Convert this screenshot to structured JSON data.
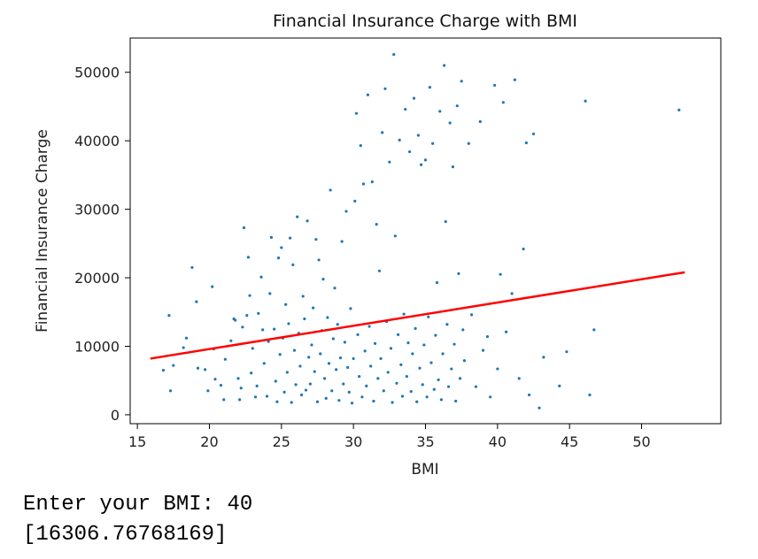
{
  "chart_data": {
    "type": "scatter",
    "title": "Financial Insurance Charge with BMI",
    "xlabel": "BMI",
    "ylabel": "Financial Insurance Charge",
    "xlim": [
      14.5,
      55.5
    ],
    "ylim": [
      -1300,
      55000
    ],
    "xticks": [
      15,
      20,
      25,
      30,
      35,
      40,
      45,
      50
    ],
    "yticks": [
      0,
      10000,
      20000,
      30000,
      40000,
      50000
    ],
    "grid": false,
    "point_color": "#1f77b4",
    "line_color": "#ff0000",
    "regression_line": {
      "x": [
        15.9,
        53
      ],
      "y": [
        8200,
        20800
      ]
    },
    "points": [
      [
        16.8,
        6500
      ],
      [
        17.2,
        14500
      ],
      [
        17.3,
        3500
      ],
      [
        17.5,
        7200
      ],
      [
        18.2,
        9800
      ],
      [
        18.4,
        11200
      ],
      [
        18.8,
        21500
      ],
      [
        19.1,
        16500
      ],
      [
        19.2,
        6800
      ],
      [
        19.7,
        6600
      ],
      [
        19.9,
        3500
      ],
      [
        20.2,
        18700
      ],
      [
        20.3,
        9600
      ],
      [
        20.4,
        5200
      ],
      [
        20.8,
        4300
      ],
      [
        21.0,
        2200
      ],
      [
        21.1,
        8100
      ],
      [
        21.5,
        10800
      ],
      [
        21.7,
        14000
      ],
      [
        21.8,
        13800
      ],
      [
        22.0,
        5300
      ],
      [
        22.1,
        2200
      ],
      [
        22.2,
        3900
      ],
      [
        22.3,
        12800
      ],
      [
        22.4,
        27300
      ],
      [
        22.6,
        14500
      ],
      [
        22.7,
        23000
      ],
      [
        22.8,
        17400
      ],
      [
        22.9,
        6100
      ],
      [
        23.0,
        9700
      ],
      [
        23.2,
        2600
      ],
      [
        23.3,
        4200
      ],
      [
        23.4,
        14800
      ],
      [
        23.6,
        20100
      ],
      [
        23.7,
        12400
      ],
      [
        23.8,
        7500
      ],
      [
        24.0,
        2700
      ],
      [
        24.1,
        10700
      ],
      [
        24.2,
        17700
      ],
      [
        24.3,
        25900
      ],
      [
        24.5,
        12500
      ],
      [
        24.6,
        4900
      ],
      [
        24.7,
        1900
      ],
      [
        24.8,
        22900
      ],
      [
        24.9,
        8800
      ],
      [
        25.0,
        24400
      ],
      [
        25.1,
        11200
      ],
      [
        25.2,
        3300
      ],
      [
        25.3,
        16100
      ],
      [
        25.4,
        6200
      ],
      [
        25.5,
        13300
      ],
      [
        25.6,
        25800
      ],
      [
        25.7,
        1800
      ],
      [
        25.8,
        21900
      ],
      [
        25.9,
        9400
      ],
      [
        26.0,
        4400
      ],
      [
        26.1,
        28900
      ],
      [
        26.2,
        11900
      ],
      [
        26.3,
        7100
      ],
      [
        26.4,
        2900
      ],
      [
        26.5,
        17300
      ],
      [
        26.6,
        14000
      ],
      [
        26.7,
        3600
      ],
      [
        26.8,
        28300
      ],
      [
        26.9,
        8400
      ],
      [
        27.0,
        4500
      ],
      [
        27.1,
        10200
      ],
      [
        27.2,
        15600
      ],
      [
        27.3,
        6300
      ],
      [
        27.4,
        25600
      ],
      [
        27.5,
        1900
      ],
      [
        27.6,
        22600
      ],
      [
        27.7,
        8900
      ],
      [
        27.8,
        12300
      ],
      [
        27.9,
        19800
      ],
      [
        28.0,
        5300
      ],
      [
        28.1,
        2400
      ],
      [
        28.2,
        14200
      ],
      [
        28.3,
        7500
      ],
      [
        28.4,
        32800
      ],
      [
        28.5,
        3500
      ],
      [
        28.6,
        11100
      ],
      [
        28.7,
        18500
      ],
      [
        28.8,
        6600
      ],
      [
        28.9,
        13200
      ],
      [
        29.0,
        2100
      ],
      [
        29.1,
        8300
      ],
      [
        29.2,
        25300
      ],
      [
        29.3,
        4500
      ],
      [
        29.4,
        10600
      ],
      [
        29.5,
        29700
      ],
      [
        29.6,
        6900
      ],
      [
        29.7,
        3300
      ],
      [
        29.8,
        15500
      ],
      [
        29.9,
        1700
      ],
      [
        30.0,
        8200
      ],
      [
        30.1,
        31200
      ],
      [
        30.2,
        44000
      ],
      [
        30.3,
        11700
      ],
      [
        30.4,
        5600
      ],
      [
        30.5,
        39300
      ],
      [
        30.6,
        2600
      ],
      [
        30.7,
        33700
      ],
      [
        30.8,
        9300
      ],
      [
        30.9,
        4200
      ],
      [
        31.0,
        46700
      ],
      [
        31.1,
        12900
      ],
      [
        31.2,
        7100
      ],
      [
        31.3,
        34000
      ],
      [
        31.4,
        2000
      ],
      [
        31.5,
        10400
      ],
      [
        31.6,
        27800
      ],
      [
        31.7,
        5300
      ],
      [
        31.8,
        21000
      ],
      [
        31.9,
        8200
      ],
      [
        32.0,
        41200
      ],
      [
        32.1,
        3500
      ],
      [
        32.2,
        47600
      ],
      [
        32.3,
        13600
      ],
      [
        32.4,
        6200
      ],
      [
        32.5,
        36900
      ],
      [
        32.6,
        9700
      ],
      [
        32.7,
        1800
      ],
      [
        32.8,
        52600
      ],
      [
        32.9,
        26100
      ],
      [
        33.0,
        4600
      ],
      [
        33.1,
        11700
      ],
      [
        33.2,
        40100
      ],
      [
        33.3,
        7300
      ],
      [
        33.4,
        2700
      ],
      [
        33.5,
        14700
      ],
      [
        33.6,
        44600
      ],
      [
        33.7,
        5600
      ],
      [
        33.8,
        10500
      ],
      [
        33.9,
        38400
      ],
      [
        34.0,
        3400
      ],
      [
        34.1,
        8900
      ],
      [
        34.2,
        46200
      ],
      [
        34.3,
        12600
      ],
      [
        34.4,
        1900
      ],
      [
        34.5,
        40800
      ],
      [
        34.6,
        6800
      ],
      [
        34.7,
        36500
      ],
      [
        34.8,
        4400
      ],
      [
        34.9,
        10200
      ],
      [
        35.0,
        37200
      ],
      [
        35.1,
        2600
      ],
      [
        35.2,
        14300
      ],
      [
        35.3,
        47800
      ],
      [
        35.4,
        7600
      ],
      [
        35.5,
        39600
      ],
      [
        35.6,
        3700
      ],
      [
        35.7,
        11600
      ],
      [
        35.8,
        19300
      ],
      [
        35.9,
        5100
      ],
      [
        36.0,
        44300
      ],
      [
        36.1,
        2200
      ],
      [
        36.2,
        8900
      ],
      [
        36.3,
        51000
      ],
      [
        36.4,
        28200
      ],
      [
        36.5,
        13200
      ],
      [
        36.6,
        4100
      ],
      [
        36.7,
        42600
      ],
      [
        36.8,
        6700
      ],
      [
        36.9,
        36200
      ],
      [
        37.0,
        10300
      ],
      [
        37.1,
        2000
      ],
      [
        37.2,
        45100
      ],
      [
        37.3,
        20600
      ],
      [
        37.4,
        5300
      ],
      [
        37.5,
        48700
      ],
      [
        37.6,
        12400
      ],
      [
        37.7,
        7900
      ],
      [
        38.0,
        39600
      ],
      [
        38.2,
        14600
      ],
      [
        38.5,
        4100
      ],
      [
        38.8,
        42800
      ],
      [
        39.0,
        9400
      ],
      [
        39.3,
        11400
      ],
      [
        39.5,
        2600
      ],
      [
        39.8,
        48100
      ],
      [
        40.0,
        6700
      ],
      [
        40.2,
        20500
      ],
      [
        40.4,
        45600
      ],
      [
        40.6,
        12100
      ],
      [
        41.0,
        17700
      ],
      [
        41.2,
        48900
      ],
      [
        41.5,
        5300
      ],
      [
        41.8,
        24200
      ],
      [
        42.0,
        39700
      ],
      [
        42.2,
        2900
      ],
      [
        42.5,
        41000
      ],
      [
        42.9,
        1000
      ],
      [
        43.2,
        8400
      ],
      [
        44.3,
        4200
      ],
      [
        44.8,
        9200
      ],
      [
        46.1,
        45800
      ],
      [
        46.4,
        2900
      ],
      [
        46.7,
        12400
      ],
      [
        52.6,
        44500
      ]
    ]
  },
  "console": {
    "line1": "Enter your BMI: 40",
    "line2": "[16306.76768169]"
  }
}
